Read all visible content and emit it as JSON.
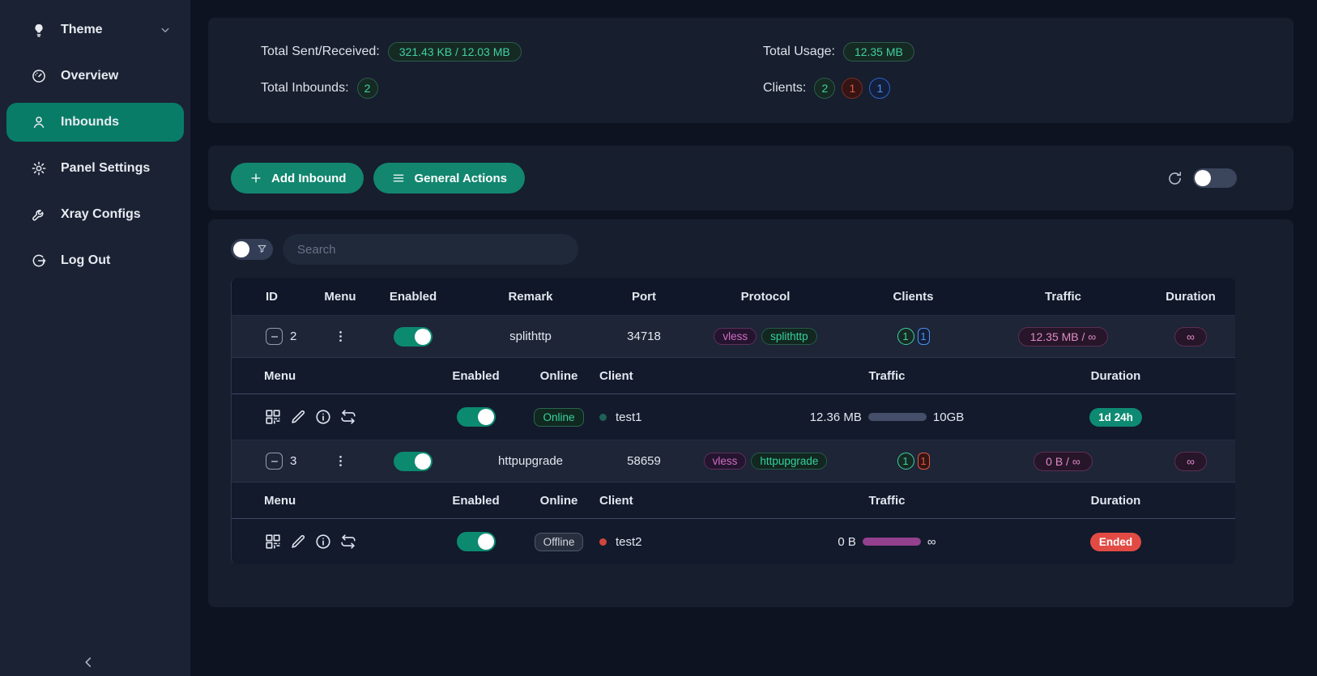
{
  "sidebar": {
    "items": [
      {
        "label": "Theme",
        "icon": "bulb-icon",
        "name": "sidebar-item-theme",
        "active": false,
        "expandable": true
      },
      {
        "label": "Overview",
        "icon": "dashboard-icon",
        "name": "sidebar-item-overview",
        "active": false,
        "expandable": false
      },
      {
        "label": "Inbounds",
        "icon": "user-icon",
        "name": "sidebar-item-inbounds",
        "active": true,
        "expandable": false
      },
      {
        "label": "Panel Settings",
        "icon": "gear-icon",
        "name": "sidebar-item-panel-settings",
        "active": false,
        "expandable": false
      },
      {
        "label": "Xray Configs",
        "icon": "wrench-icon",
        "name": "sidebar-item-xray-configs",
        "active": false,
        "expandable": false
      },
      {
        "label": "Log Out",
        "icon": "logout-icon",
        "name": "sidebar-item-log-out",
        "active": false,
        "expandable": false
      }
    ]
  },
  "stats": {
    "sent_received_label": "Total Sent/Received:",
    "sent_received_value": "321.43 KB / 12.03 MB",
    "total_inbounds_label": "Total Inbounds:",
    "total_inbounds_value": "2",
    "total_usage_label": "Total Usage:",
    "total_usage_value": "12.35 MB",
    "clients_label": "Clients:",
    "clients_counts": [
      {
        "value": "2",
        "color": "green"
      },
      {
        "value": "1",
        "color": "red"
      },
      {
        "value": "1",
        "color": "blue"
      }
    ]
  },
  "toolbar": {
    "add_inbound_label": "Add Inbound",
    "general_actions_label": "General Actions",
    "auto_refresh_enabled": false
  },
  "search": {
    "placeholder": "Search",
    "value": ""
  },
  "table": {
    "headers": [
      "ID",
      "Menu",
      "Enabled",
      "Remark",
      "Port",
      "Protocol",
      "Clients",
      "Traffic",
      "Duration"
    ],
    "sub_headers": [
      "Menu",
      "Enabled",
      "Online",
      "Client",
      "Traffic",
      "Duration"
    ],
    "inbounds": [
      {
        "id": "2",
        "enabled": true,
        "remark": "splithttp",
        "port": "34718",
        "protocol": "vless",
        "transport": "splithttp",
        "client_counts": [
          {
            "value": "1",
            "color": "green",
            "shape": "circle"
          },
          {
            "value": "1",
            "color": "blue",
            "shape": "rect"
          }
        ],
        "traffic": "12.35 MB / ∞",
        "duration": "∞",
        "clients": [
          {
            "enabled": true,
            "online_label": "Online",
            "online": true,
            "name": "test1",
            "traffic_used": "12.36 MB",
            "traffic_total": "10GB",
            "bar_color": "gray",
            "duration": "1d 24h",
            "duration_state": "active"
          }
        ]
      },
      {
        "id": "3",
        "enabled": true,
        "remark": "httpupgrade",
        "port": "58659",
        "protocol": "vless",
        "transport": "httpupgrade",
        "client_counts": [
          {
            "value": "1",
            "color": "green",
            "shape": "circle"
          },
          {
            "value": "1",
            "color": "red",
            "shape": "rect"
          }
        ],
        "traffic": "0 B / ∞",
        "duration": "∞",
        "clients": [
          {
            "enabled": true,
            "online_label": "Offline",
            "online": false,
            "name": "test2",
            "traffic_used": "0 B",
            "traffic_total": "∞",
            "bar_color": "purple",
            "duration": "Ended",
            "duration_state": "ended"
          }
        ]
      }
    ]
  },
  "colors": {
    "accent_teal": "#12866f",
    "active_sidebar": "#087c67",
    "badge_green": "#41d0a2",
    "badge_red": "#e25649",
    "badge_blue": "#4e92ec",
    "tag_pink": "#cf6ec0",
    "duration_ended_red": "#e14b44",
    "bar_purple": "#93408d"
  }
}
